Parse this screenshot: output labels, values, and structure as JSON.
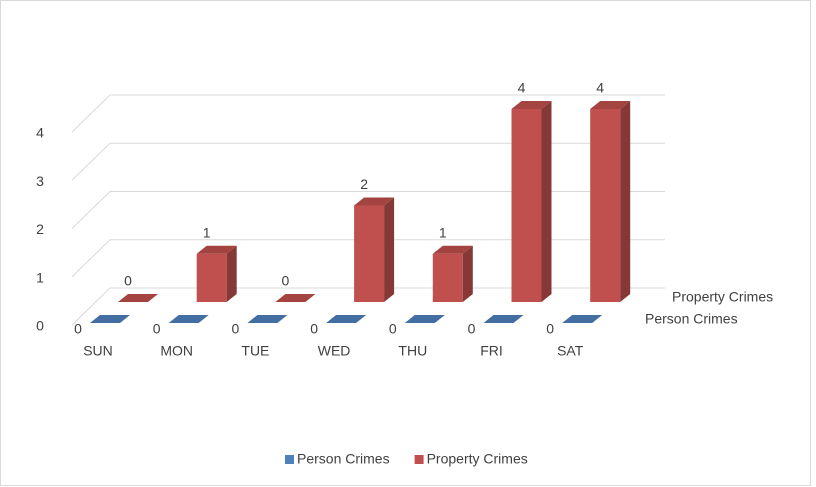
{
  "chart_data": {
    "type": "bar3d",
    "categories": [
      "SUN",
      "MON",
      "TUE",
      "WED",
      "THU",
      "FRI",
      "SAT"
    ],
    "series": [
      {
        "name": "Person Crimes",
        "color": "#4f81bd",
        "values": [
          0,
          0,
          0,
          0,
          0,
          0,
          0
        ]
      },
      {
        "name": "Property Crimes",
        "color": "#c0504d",
        "values": [
          0,
          1,
          0,
          2,
          1,
          4,
          4
        ]
      }
    ],
    "ylim": [
      0,
      4
    ],
    "yticks": [
      0,
      1,
      2,
      3,
      4
    ],
    "grid": true,
    "legend": "bottom"
  }
}
